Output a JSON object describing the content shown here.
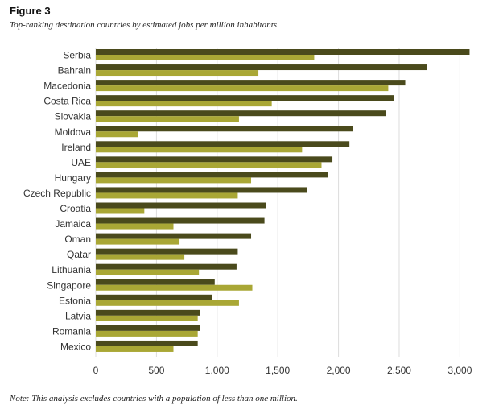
{
  "figure_label": "Figure 3",
  "note": "Note: This analysis excludes countries with a population of less than one million.",
  "colors": {
    "dark": "#4a4a1c",
    "light": "#a9a735",
    "grid": "#dcdcdc"
  },
  "chart_data": {
    "type": "bar",
    "orientation": "horizontal",
    "title": "Top-ranking destination countries by estimated jobs per million inhabitants",
    "xlabel": "",
    "ylabel": "",
    "xlim": [
      0,
      3150
    ],
    "xticks": [
      0,
      500,
      1000,
      1500,
      2000,
      2500,
      3000
    ],
    "xtick_labels": [
      "0",
      "500",
      "1,000",
      "1,500",
      "2,000",
      "2,500",
      "3,000"
    ],
    "grid": "vertical",
    "legend": "none",
    "categories": [
      "Serbia",
      "Bahrain",
      "Macedonia",
      "Costa Rica",
      "Slovakia",
      "Moldova",
      "Ireland",
      "UAE",
      "Hungary",
      "Czech Republic",
      "Croatia",
      "Jamaica",
      "Oman",
      "Qatar",
      "Lithuania",
      "Singapore",
      "Estonia",
      "Latvia",
      "Romania",
      "Mexico"
    ],
    "series": [
      {
        "color": "dark",
        "values": [
          3080,
          2730,
          2550,
          2460,
          2390,
          2120,
          2090,
          1950,
          1910,
          1740,
          1400,
          1390,
          1280,
          1170,
          1160,
          980,
          960,
          860,
          860,
          840
        ]
      },
      {
        "color": "light",
        "values": [
          1800,
          1340,
          2410,
          1450,
          1180,
          350,
          1700,
          1860,
          1280,
          1170,
          400,
          640,
          690,
          730,
          850,
          1290,
          1180,
          840,
          840,
          640
        ]
      }
    ]
  }
}
